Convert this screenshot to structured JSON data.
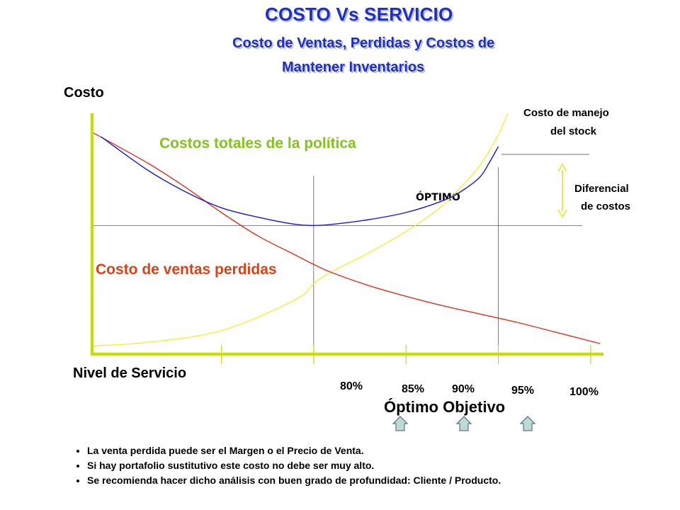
{
  "header": {
    "title": "COSTO Vs SERVICIO",
    "subtitle_line1": "Costo de Ventas, Perdidas y Costos de",
    "subtitle_line2": "Mantener Inventarios"
  },
  "chart_data": {
    "type": "line",
    "ylabel": "Costo",
    "xlabel": "Nivel de Servicio",
    "x_ticks": [
      "80%",
      "85%",
      "90%",
      "95%",
      "100%"
    ],
    "x_tick_values": [
      80,
      85,
      90,
      95,
      100
    ],
    "xlim": [
      73,
      101
    ],
    "series": [
      {
        "name": "Costos totales de la política",
        "color": "#1a1acc",
        "x": [
          73.5,
          76,
          78,
          80,
          82,
          84,
          85,
          86,
          88,
          90,
          92,
          93,
          94,
          94.5,
          95
        ],
        "y": [
          9.2,
          7.8,
          6.9,
          6.2,
          5.8,
          5.5,
          5.45,
          5.5,
          5.7,
          6.0,
          6.5,
          6.9,
          7.5,
          8.1,
          8.8
        ]
      },
      {
        "name": "Costo de ventas perdidas",
        "color": "#e03020",
        "x": [
          73,
          76,
          78,
          80,
          82,
          84,
          85,
          86,
          88,
          90,
          92,
          94,
          96,
          98,
          100.5
        ],
        "y": [
          9.4,
          8.1,
          7.1,
          6.0,
          5.0,
          4.2,
          3.8,
          3.45,
          2.9,
          2.45,
          2.05,
          1.7,
          1.35,
          0.95,
          0.45
        ]
      },
      {
        "name": "Costo de manejo del stock",
        "color": "#f0f040",
        "x": [
          73,
          76,
          80,
          84,
          85,
          86,
          88,
          90,
          92,
          93,
          94,
          95,
          95.5
        ],
        "y": [
          0.35,
          0.5,
          1.0,
          2.3,
          3.0,
          3.5,
          4.3,
          5.2,
          6.3,
          7.1,
          8.0,
          9.3,
          10.2
        ]
      }
    ],
    "labels": {
      "total": "Costos totales de la política",
      "lost_sales": "Costo de ventas perdidas",
      "stock_line1": "Costo de manejo",
      "stock_line2": "del stock",
      "optimo": "ÓPTIMO",
      "diff_line1": "Diferencial",
      "diff_line2": "de costos"
    },
    "colors": {
      "total_label": "#86c21f",
      "lost_label": "#d8431a",
      "axis": "#c8dc10"
    },
    "optimo_x": 85,
    "objetivo_x": 95,
    "optimo_objetivo_label": "Óptimo Objetivo"
  },
  "notes": [
    "La venta perdida puede ser el Margen o el Precio de Venta.",
    "Si hay portafolio sustitutivo este costo no debe ser muy alto.",
    "Se recomienda hacer dicho análisis con buen grado de profundidad: Cliente / Producto."
  ],
  "icons": {
    "marker": "up-arrow-icon",
    "marker_color": "#b9dcd8"
  }
}
